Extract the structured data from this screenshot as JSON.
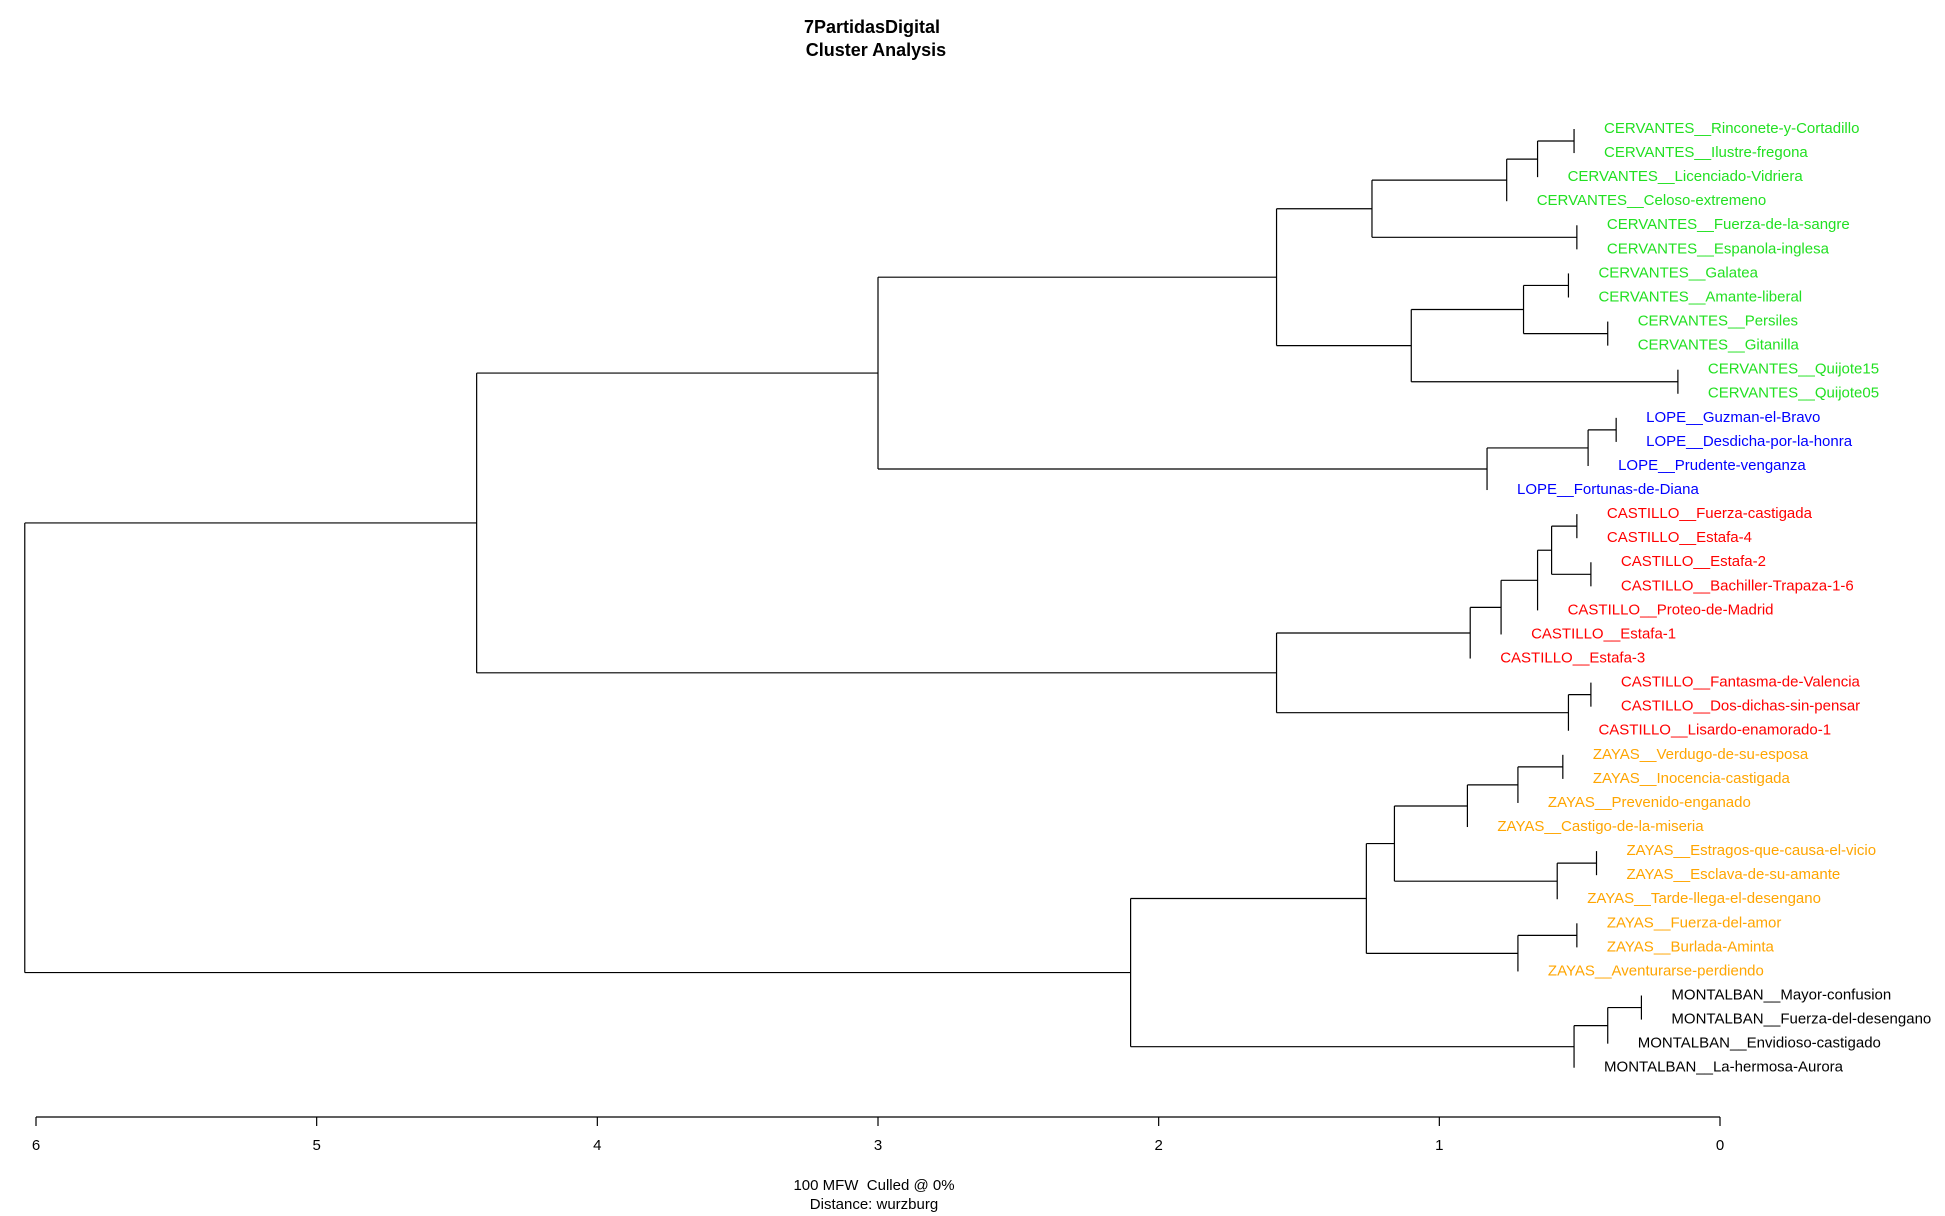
{
  "chart_data": {
    "type": "dendrogram",
    "title": "7PartidasDigital",
    "subtitle": "Cluster Analysis",
    "xlabel": "100 MFW  Culled @ 0%",
    "xlabel2": "Distance: wurzburg",
    "xlim": [
      6,
      0
    ],
    "xticks": [
      6,
      5,
      4,
      3,
      2,
      1,
      0
    ],
    "tree": {
      "height": 6.04,
      "children": [
        {
          "height": 4.43,
          "children": [
            {
              "height": 3.0,
              "children": [
                {
                  "height": 1.58,
                  "children": [
                    {
                      "height": 1.24,
                      "children": [
                        {
                          "height": 0.76,
                          "children": [
                            {
                              "height": 0.65,
                              "children": [
                                {
                                  "height": 0.52,
                                  "children": [
                                    {
                                      "label": "CERVANTES__Rinconete-y-Cortadillo",
                                      "color": "#22e022"
                                    },
                                    {
                                      "label": "CERVANTES__Ilustre-fregona",
                                      "color": "#22e022"
                                    }
                                  ]
                                },
                                {
                                  "label": "CERVANTES__Licenciado-Vidriera",
                                  "color": "#22e022"
                                }
                              ]
                            },
                            {
                              "label": "CERVANTES__Celoso-extremeno",
                              "color": "#22e022"
                            }
                          ]
                        },
                        {
                          "height": 0.51,
                          "children": [
                            {
                              "label": "CERVANTES__Fuerza-de-la-sangre",
                              "color": "#22e022"
                            },
                            {
                              "label": "CERVANTES__Espanola-inglesa",
                              "color": "#22e022"
                            }
                          ]
                        }
                      ]
                    },
                    {
                      "height": 1.1,
                      "children": [
                        {
                          "height": 0.7,
                          "children": [
                            {
                              "height": 0.54,
                              "children": [
                                {
                                  "label": "CERVANTES__Galatea",
                                  "color": "#22e022"
                                },
                                {
                                  "label": "CERVANTES__Amante-liberal",
                                  "color": "#22e022"
                                }
                              ]
                            },
                            {
                              "height": 0.4,
                              "children": [
                                {
                                  "label": "CERVANTES__Persiles",
                                  "color": "#22e022"
                                },
                                {
                                  "label": "CERVANTES__Gitanilla",
                                  "color": "#22e022"
                                }
                              ]
                            }
                          ]
                        },
                        {
                          "height": 0.15,
                          "children": [
                            {
                              "label": "CERVANTES__Quijote15",
                              "color": "#22e022"
                            },
                            {
                              "label": "CERVANTES__Quijote05",
                              "color": "#22e022"
                            }
                          ]
                        }
                      ]
                    }
                  ]
                },
                {
                  "height": 0.83,
                  "children": [
                    {
                      "height": 0.47,
                      "children": [
                        {
                          "height": 0.37,
                          "children": [
                            {
                              "label": "LOPE__Guzman-el-Bravo",
                              "color": "#0000ff"
                            },
                            {
                              "label": "LOPE__Desdicha-por-la-honra",
                              "color": "#0000ff"
                            }
                          ]
                        },
                        {
                          "label": "LOPE__Prudente-venganza",
                          "color": "#0000ff"
                        }
                      ]
                    },
                    {
                      "label": "LOPE__Fortunas-de-Diana",
                      "color": "#0000ff"
                    }
                  ]
                }
              ]
            },
            {
              "height": 1.58,
              "children": [
                {
                  "height": 0.89,
                  "children": [
                    {
                      "height": 0.78,
                      "children": [
                        {
                          "height": 0.65,
                          "children": [
                            {
                              "height": 0.6,
                              "children": [
                                {
                                  "height": 0.51,
                                  "children": [
                                    {
                                      "label": "CASTILLO__Fuerza-castigada",
                                      "color": "#ff0000"
                                    },
                                    {
                                      "label": "CASTILLO__Estafa-4",
                                      "color": "#ff0000"
                                    }
                                  ]
                                },
                                {
                                  "height": 0.46,
                                  "children": [
                                    {
                                      "label": "CASTILLO__Estafa-2",
                                      "color": "#ff0000"
                                    },
                                    {
                                      "label": "CASTILLO__Bachiller-Trapaza-1-6",
                                      "color": "#ff0000"
                                    }
                                  ]
                                }
                              ]
                            },
                            {
                              "label": "CASTILLO__Proteo-de-Madrid",
                              "color": "#ff0000"
                            }
                          ]
                        },
                        {
                          "label": "CASTILLO__Estafa-1",
                          "color": "#ff0000"
                        }
                      ]
                    },
                    {
                      "label": "CASTILLO__Estafa-3",
                      "color": "#ff0000"
                    }
                  ]
                },
                {
                  "height": 0.54,
                  "children": [
                    {
                      "height": 0.46,
                      "children": [
                        {
                          "label": "CASTILLO__Fantasma-de-Valencia",
                          "color": "#ff0000"
                        },
                        {
                          "label": "CASTILLO__Dos-dichas-sin-pensar",
                          "color": "#ff0000"
                        }
                      ]
                    },
                    {
                      "label": "CASTILLO__Lisardo-enamorado-1",
                      "color": "#ff0000"
                    }
                  ]
                }
              ]
            }
          ]
        },
        {
          "height": 2.1,
          "children": [
            {
              "height": 1.26,
              "children": [
                {
                  "height": 1.16,
                  "children": [
                    {
                      "height": 0.9,
                      "children": [
                        {
                          "height": 0.72,
                          "children": [
                            {
                              "height": 0.56,
                              "children": [
                                {
                                  "label": "ZAYAS__Verdugo-de-su-esposa",
                                  "color": "#ffa500"
                                },
                                {
                                  "label": "ZAYAS__Inocencia-castigada",
                                  "color": "#ffa500"
                                }
                              ]
                            },
                            {
                              "label": "ZAYAS__Prevenido-enganado",
                              "color": "#ffa500"
                            }
                          ]
                        },
                        {
                          "label": "ZAYAS__Castigo-de-la-miseria",
                          "color": "#ffa500"
                        }
                      ]
                    },
                    {
                      "height": 0.58,
                      "children": [
                        {
                          "height": 0.44,
                          "children": [
                            {
                              "label": "ZAYAS__Estragos-que-causa-el-vicio",
                              "color": "#ffa500"
                            },
                            {
                              "label": "ZAYAS__Esclava-de-su-amante",
                              "color": "#ffa500"
                            }
                          ]
                        },
                        {
                          "label": "ZAYAS__Tarde-llega-el-desengano",
                          "color": "#ffa500"
                        }
                      ]
                    }
                  ]
                },
                {
                  "height": 0.72,
                  "children": [
                    {
                      "height": 0.51,
                      "children": [
                        {
                          "label": "ZAYAS__Fuerza-del-amor",
                          "color": "#ffa500"
                        },
                        {
                          "label": "ZAYAS__Burlada-Aminta",
                          "color": "#ffa500"
                        }
                      ]
                    },
                    {
                      "label": "ZAYAS__Aventurarse-perdiendo",
                      "color": "#ffa500"
                    }
                  ]
                }
              ]
            },
            {
              "height": 0.52,
              "children": [
                {
                  "height": 0.4,
                  "children": [
                    {
                      "height": 0.28,
                      "children": [
                        {
                          "label": "MONTALBAN__Mayor-confusion",
                          "color": "#000000"
                        },
                        {
                          "label": "MONTALBAN__Fuerza-del-desengano",
                          "color": "#000000"
                        }
                      ]
                    },
                    {
                      "label": "MONTALBAN__Envidioso-castigado",
                      "color": "#000000"
                    }
                  ]
                },
                {
                  "label": "MONTALBAN__La-hermosa-Aurora",
                  "color": "#000000"
                }
              ]
            }
          ]
        }
      ]
    }
  }
}
